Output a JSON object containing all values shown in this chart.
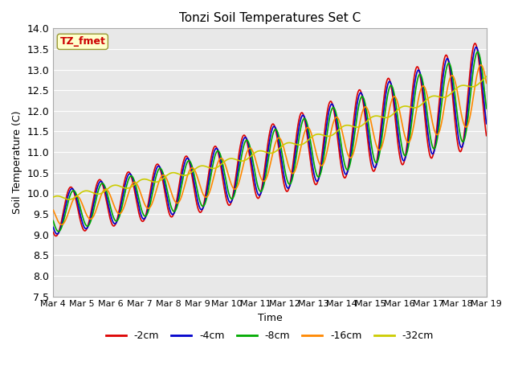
{
  "title": "Tonzi Soil Temperatures Set C",
  "xlabel": "Time",
  "ylabel": "Soil Temperature (C)",
  "ylim": [
    7.5,
    14.0
  ],
  "yticks": [
    7.5,
    8.0,
    8.5,
    9.0,
    9.5,
    10.0,
    10.5,
    11.0,
    11.5,
    12.0,
    12.5,
    13.0,
    13.5,
    14.0
  ],
  "xtick_labels": [
    "Mar 4",
    "Mar 5",
    "Mar 6",
    "Mar 7",
    "Mar 8",
    "Mar 9",
    "Mar 10",
    "Mar 11",
    "Mar 12",
    "Mar 13",
    "Mar 14",
    "Mar 15",
    "Mar 16",
    "Mar 17",
    "Mar 18",
    "Mar 19"
  ],
  "legend_label": "TZ_fmet",
  "legend_box_color": "#ffffcc",
  "legend_text_color": "#cc0000",
  "series": {
    "-2cm": {
      "color": "#dd0000",
      "linewidth": 1.2
    },
    "-4cm": {
      "color": "#0000cc",
      "linewidth": 1.2
    },
    "-8cm": {
      "color": "#00aa00",
      "linewidth": 1.2
    },
    "-16cm": {
      "color": "#ff8800",
      "linewidth": 1.2
    },
    "-32cm": {
      "color": "#cccc00",
      "linewidth": 1.2
    }
  },
  "background_color": "#e8e8e8",
  "grid_color": "#ffffff"
}
